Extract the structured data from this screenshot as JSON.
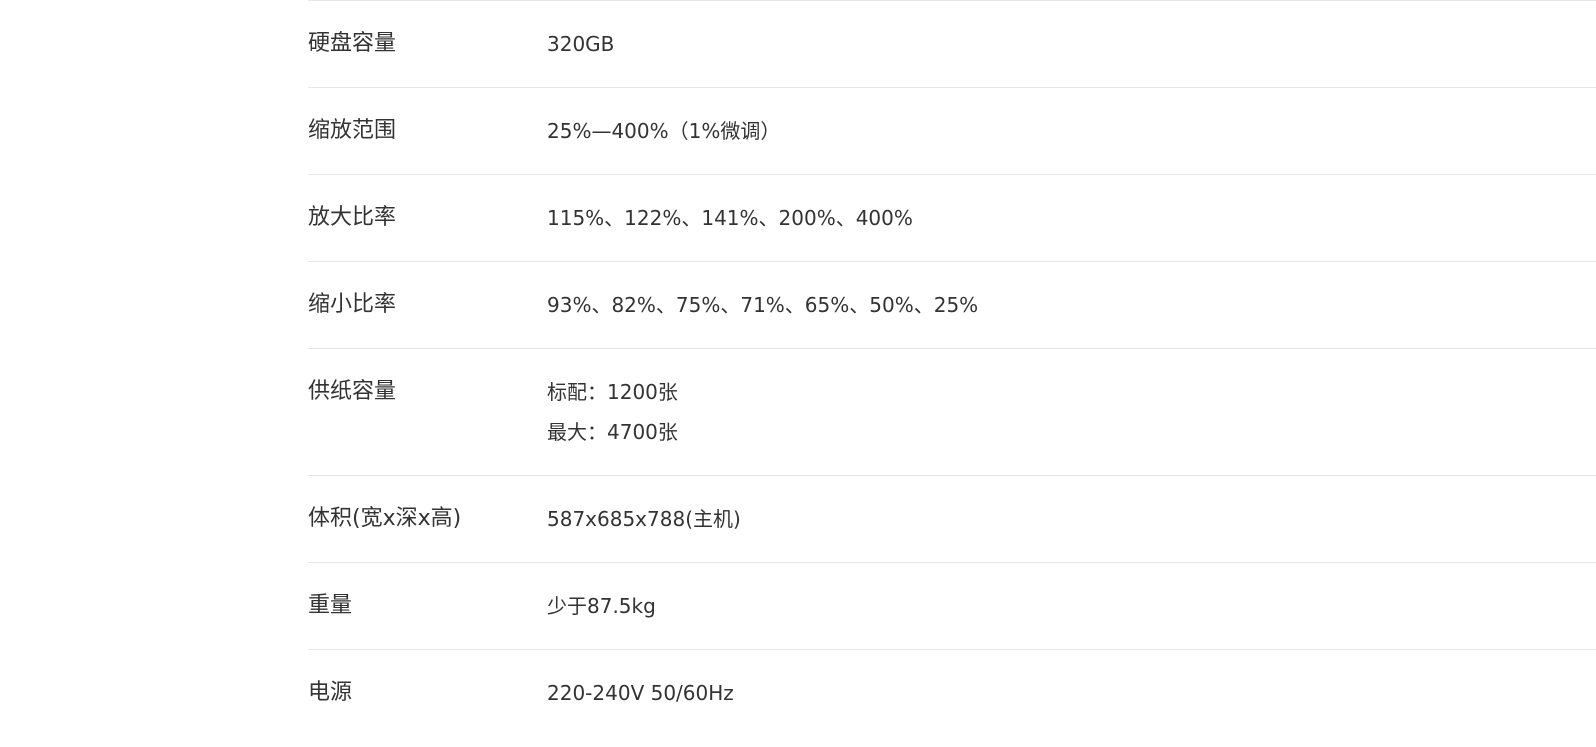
{
  "specs": [
    {
      "label": "硬盘容量",
      "lines": [
        "320GB"
      ]
    },
    {
      "label": "缩放范围",
      "lines": [
        "25%—400%（1%微调）"
      ]
    },
    {
      "label": "放大比率",
      "lines": [
        "115%、122%、141%、200%、400%"
      ]
    },
    {
      "label": "缩小比率",
      "lines": [
        "93%、82%、75%、71%、65%、50%、25%"
      ]
    },
    {
      "label": "供纸容量",
      "lines": [
        "标配：1200张",
        "最大：4700张"
      ]
    },
    {
      "label": "体积(宽x深x高)",
      "lines": [
        "587x685x788(主机)"
      ]
    },
    {
      "label": "重量",
      "lines": [
        "少于87.5kg"
      ]
    },
    {
      "label": "电源",
      "lines": [
        "220-240V 50/60Hz"
      ]
    }
  ]
}
